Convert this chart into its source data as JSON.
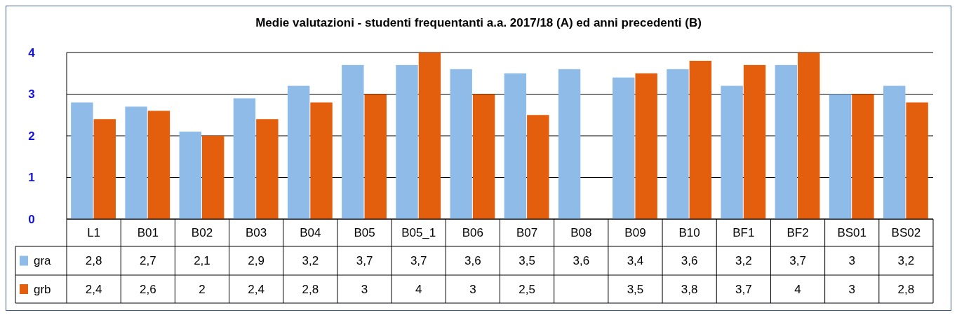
{
  "chart_data": {
    "type": "bar",
    "title": "Medie valutazioni - studenti frequentanti  a.a. 2017/18 (A) ed anni precedenti (B)",
    "categories": [
      "L1",
      "B01",
      "B02",
      "B03",
      "B04",
      "B05",
      "B05_1",
      "B06",
      "B07",
      "B08",
      "B09",
      "B10",
      "BF1",
      "BF2",
      "BS01",
      "BS02"
    ],
    "series": [
      {
        "name": "gra",
        "color": "#8fbbe8",
        "values": [
          2.8,
          2.7,
          2.1,
          2.9,
          3.2,
          3.7,
          3.7,
          3.6,
          3.5,
          3.6,
          3.4,
          3.6,
          3.2,
          3.7,
          3,
          3.2
        ],
        "value_labels": [
          "2,8",
          "2,7",
          "2,1",
          "2,9",
          "3,2",
          "3,7",
          "3,7",
          "3,6",
          "3,5",
          "3,6",
          "3,4",
          "3,6",
          "3,2",
          "3,7",
          "3",
          "3,2"
        ]
      },
      {
        "name": "grb",
        "color": "#e35f0e",
        "values": [
          2.4,
          2.6,
          2,
          2.4,
          2.8,
          3,
          4,
          3,
          2.5,
          null,
          3.5,
          3.8,
          3.7,
          4,
          3,
          2.8
        ],
        "value_labels": [
          "2,4",
          "2,6",
          "2",
          "2,4",
          "2,8",
          "3",
          "4",
          "3",
          "2,5",
          null,
          "3,5",
          "3,8",
          "3,7",
          "4",
          "3",
          "2,8"
        ]
      }
    ],
    "ylim": [
      0,
      4
    ],
    "yticks": [
      0,
      1,
      2,
      3,
      4
    ],
    "grid": "y",
    "legend": "bottom"
  }
}
